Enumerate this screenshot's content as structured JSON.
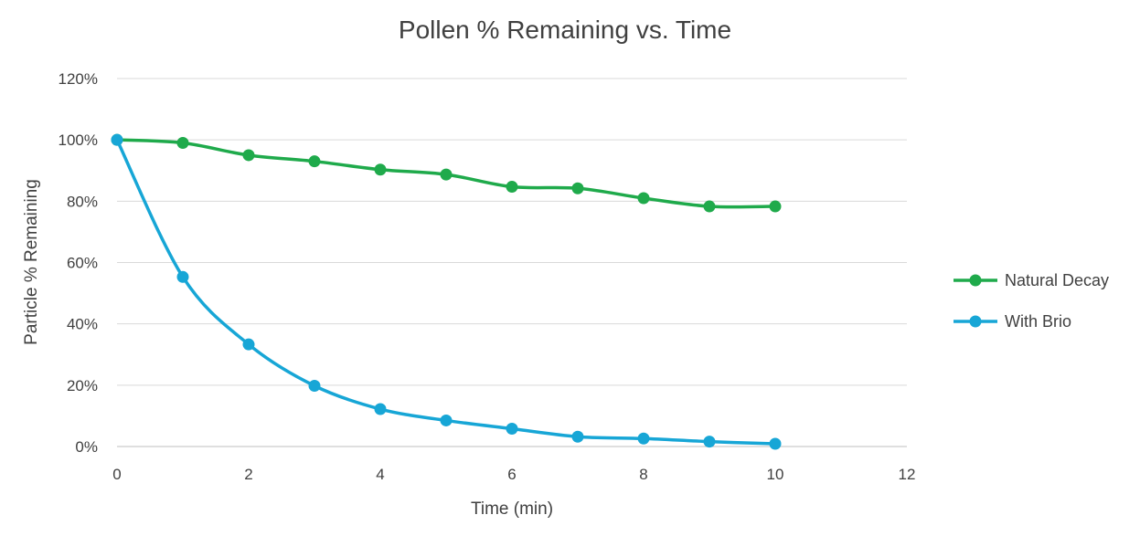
{
  "chart_data": {
    "type": "line",
    "title": "Pollen % Remaining vs. Time",
    "xlabel": "Time (min)",
    "ylabel": "Particle % Remaining",
    "xlim": [
      0,
      12
    ],
    "ylim": [
      0,
      120
    ],
    "x_ticks": [
      0,
      2,
      4,
      6,
      8,
      10,
      12
    ],
    "y_ticks": [
      0,
      20,
      40,
      60,
      80,
      100,
      120
    ],
    "y_tick_suffix": "%",
    "grid": "horizontal",
    "legend_position": "right",
    "smooth": true,
    "series": [
      {
        "name": "Natural Decay",
        "color": "#1faa4b",
        "x": [
          0,
          1,
          2,
          3,
          4,
          5,
          6,
          7,
          8,
          9,
          10
        ],
        "y": [
          100,
          99,
          95,
          93,
          90.3,
          88.7,
          84.7,
          84.2,
          81,
          78.3,
          78.3
        ]
      },
      {
        "name": "With Brio",
        "color": "#17a6d6",
        "x": [
          0,
          1,
          2,
          3,
          4,
          5,
          6,
          7,
          8,
          9,
          10
        ],
        "y": [
          100,
          55.3,
          33.3,
          19.8,
          12.2,
          8.5,
          5.8,
          3.2,
          2.6,
          1.6,
          0.9
        ]
      }
    ]
  }
}
